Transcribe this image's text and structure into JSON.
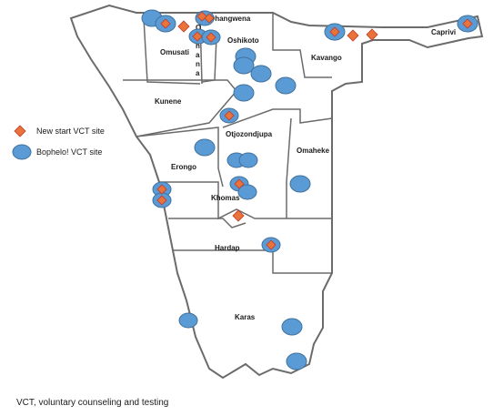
{
  "legend": {
    "new_start_label": "New start VCT site",
    "bophelo_label": "Bophelo! VCT site"
  },
  "footnote": "VCT, voluntary counseling and testing",
  "colors": {
    "new_start_fill": "#e8743b",
    "new_start_stroke": "#c0392b",
    "bophelo_fill": "#5b9bd5",
    "bophelo_stroke": "#41719c",
    "border": "#6b6b6b"
  },
  "regions": {
    "ohangwena": "Ohangwena",
    "omusati": "Omusati",
    "oshana": "Oshana",
    "oshikoto": "Oshikoto",
    "kavango": "Kavango",
    "caprivi": "Caprivi",
    "kunene": "Kunene",
    "otjozondjupa": "Otjozondjupa",
    "erongo": "Erongo",
    "omaheke": "Omaheke",
    "khomas": "Khomas",
    "hardap": "Hardap",
    "karas": "Karas"
  }
}
